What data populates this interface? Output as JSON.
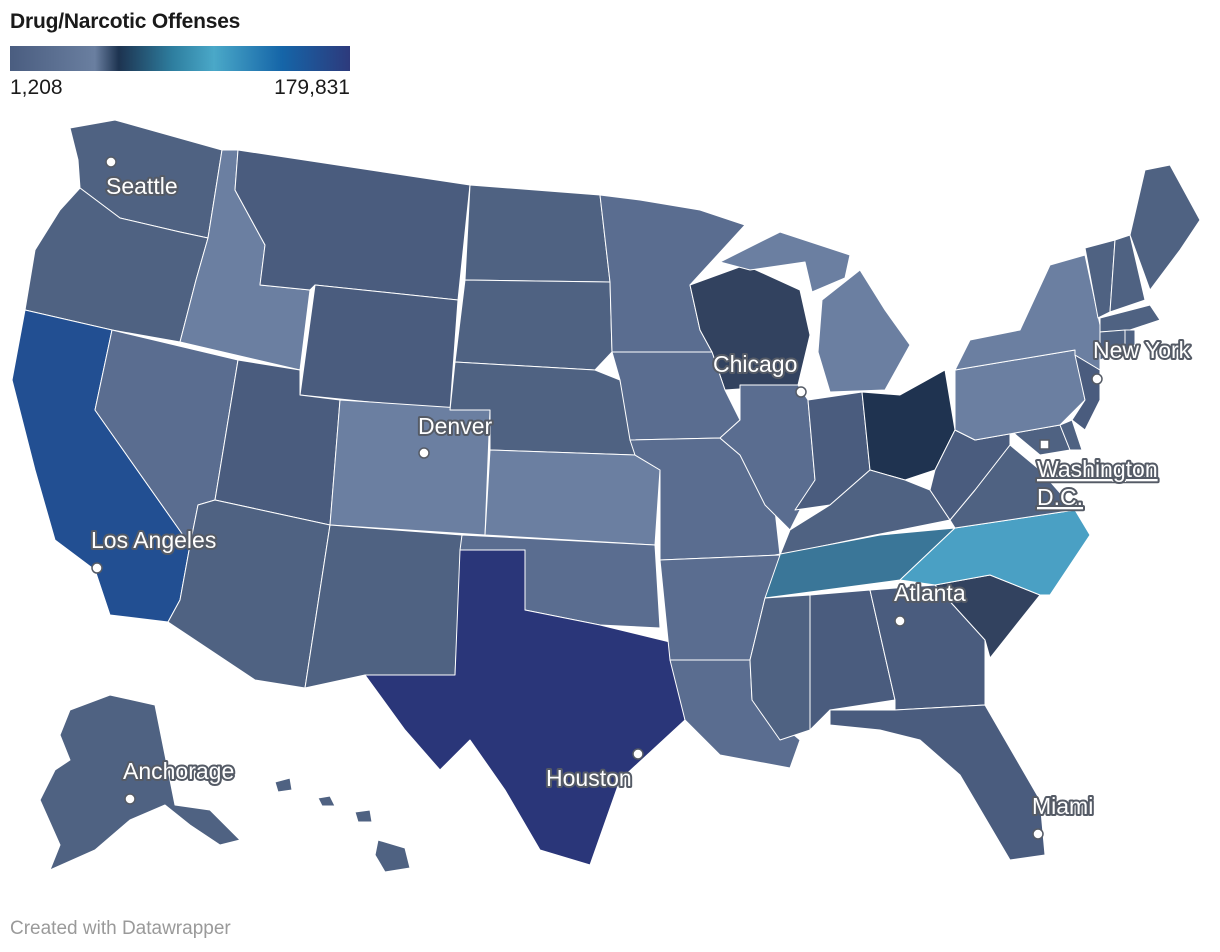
{
  "title": "Drug/Narcotic Offenses",
  "legend": {
    "min_label": "1,208",
    "max_label": "179,831",
    "gradient": [
      "#4a5d80",
      "#6a7fa0",
      "#1d3350",
      "#2e7fa0",
      "#4aa8c8",
      "#1565a8",
      "#2d3a7c"
    ]
  },
  "colors": {
    "background": "#ffffff",
    "border": "#ffffff",
    "shade_lightest": "#6b7fa1",
    "shade_light": "#5a6d90",
    "shade_mid": "#4f6282",
    "shade_dark": "#3f5070",
    "shade_darker": "#32425f",
    "ohio": "#1f3350",
    "tennessee": "#3a7698",
    "north_carolina": "#4aa0c4",
    "california": "#224f92",
    "texas": "#2a3679"
  },
  "cities": [
    {
      "name": "Seattle"
    },
    {
      "name": "Chicago"
    },
    {
      "name": "New York"
    },
    {
      "name": "Denver"
    },
    {
      "name": "Washington D.C.",
      "line1": "Washington",
      "line2": "D.C."
    },
    {
      "name": "Los Angeles"
    },
    {
      "name": "Atlanta"
    },
    {
      "name": "Anchorage"
    },
    {
      "name": "Houston"
    },
    {
      "name": "Miami"
    }
  ],
  "footer": "Created with Datawrapper"
}
